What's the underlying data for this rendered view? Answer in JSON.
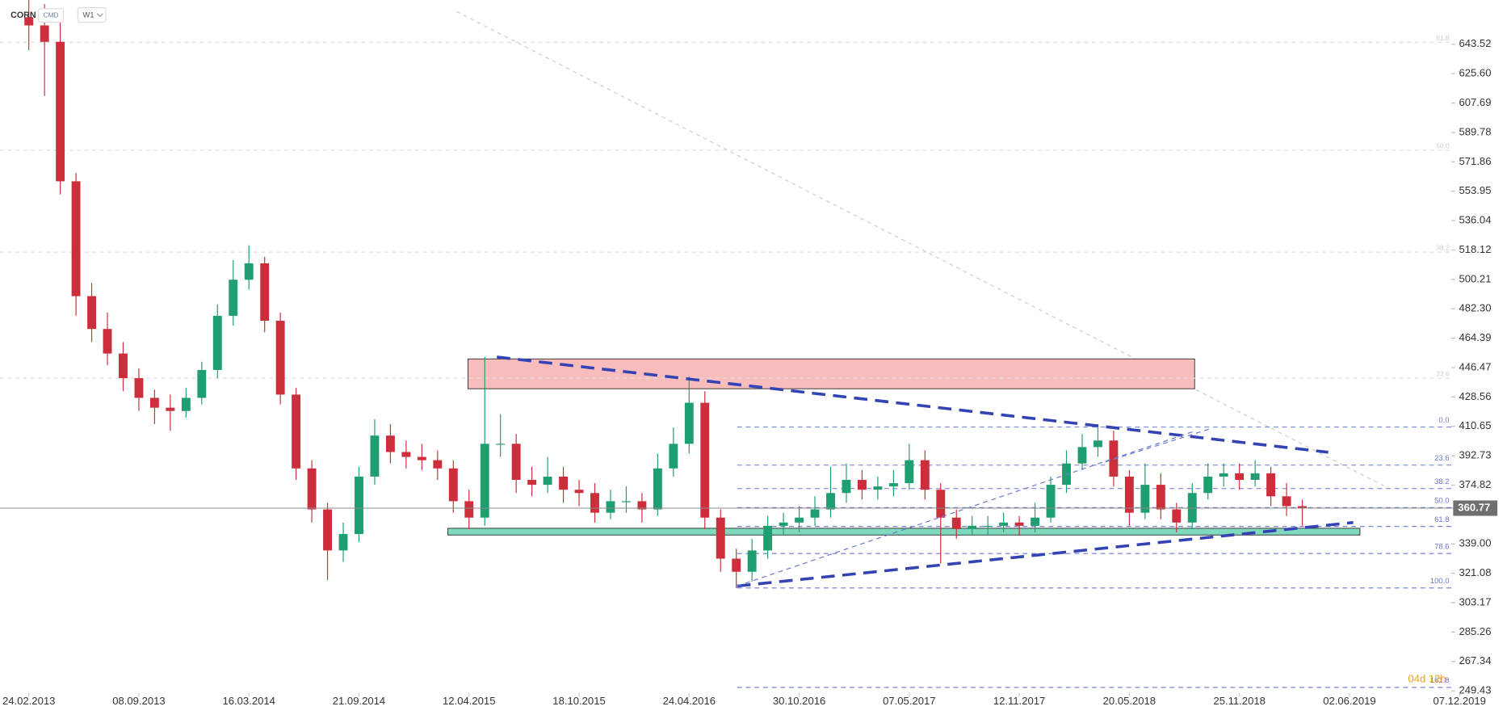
{
  "chart_data": {
    "type": "candlestick",
    "symbol": "CORN",
    "tags": [
      "CMD",
      "W1"
    ],
    "countdown": "04d 12h",
    "up_color": "#1f9f6f",
    "down_color": "#cc2f3b",
    "x": [
      0,
      4,
      8,
      12,
      16,
      20,
      24,
      28,
      32,
      36,
      40,
      44,
      48,
      52,
      56,
      60,
      64,
      68,
      72,
      76,
      80,
      84,
      88,
      92,
      96,
      100,
      104,
      108,
      112,
      116,
      120,
      124,
      128,
      132,
      136,
      140,
      144,
      148,
      152,
      156,
      160,
      164,
      168,
      172,
      176,
      180,
      184,
      188,
      192,
      196,
      200,
      204,
      208,
      212,
      216,
      220,
      224,
      228,
      232,
      236,
      240,
      244,
      248,
      252,
      256,
      260,
      264,
      268,
      272,
      276,
      280,
      284,
      288,
      292,
      296,
      300,
      304,
      308,
      312,
      316,
      320,
      324
    ],
    "open": [
      660,
      655,
      645,
      560,
      490,
      470,
      455,
      440,
      428,
      422,
      420,
      428,
      445,
      478,
      500,
      510,
      475,
      430,
      385,
      360,
      335,
      345,
      380,
      405,
      395,
      392,
      390,
      385,
      365,
      355,
      400,
      400,
      378,
      375,
      380,
      372,
      370,
      358,
      365,
      365,
      360,
      385,
      400,
      425,
      355,
      330,
      322,
      335,
      350,
      352,
      355,
      360,
      370,
      378,
      372,
      374,
      376,
      390,
      372,
      355,
      348,
      350,
      350,
      352,
      350,
      355,
      375,
      388,
      398,
      402,
      380,
      358,
      375,
      360,
      352,
      370,
      380,
      382,
      378,
      382,
      368,
      362
    ],
    "high": [
      675,
      668,
      662,
      565,
      498,
      480,
      462,
      446,
      433,
      430,
      434,
      450,
      485,
      512,
      521,
      514,
      480,
      434,
      390,
      364,
      352,
      386,
      415,
      412,
      402,
      400,
      396,
      390,
      372,
      453,
      418,
      406,
      386,
      392,
      386,
      378,
      376,
      372,
      374,
      370,
      394,
      410,
      441,
      432,
      360,
      336,
      342,
      356,
      358,
      362,
      368,
      386,
      388,
      384,
      380,
      384,
      400,
      396,
      376,
      360,
      356,
      356,
      358,
      356,
      364,
      380,
      396,
      406,
      412,
      408,
      384,
      388,
      382,
      364,
      376,
      388,
      388,
      388,
      390,
      386,
      376,
      366
    ],
    "low": [
      640,
      612,
      552,
      478,
      462,
      448,
      432,
      420,
      412,
      408,
      416,
      424,
      440,
      472,
      494,
      468,
      424,
      378,
      352,
      317,
      328,
      340,
      375,
      388,
      385,
      384,
      378,
      358,
      348,
      350,
      392,
      370,
      368,
      370,
      364,
      362,
      352,
      354,
      358,
      352,
      356,
      380,
      394,
      348,
      322,
      312,
      316,
      330,
      344,
      346,
      350,
      355,
      364,
      366,
      366,
      368,
      372,
      366,
      327,
      342,
      344,
      344,
      346,
      344,
      346,
      352,
      370,
      384,
      392,
      374,
      350,
      354,
      354,
      346,
      348,
      366,
      374,
      372,
      374,
      362,
      356,
      350
    ],
    "close": [
      655,
      645,
      560,
      490,
      470,
      455,
      440,
      428,
      422,
      420,
      428,
      445,
      478,
      500,
      510,
      475,
      430,
      385,
      360,
      335,
      345,
      380,
      405,
      395,
      392,
      390,
      385,
      365,
      355,
      400,
      400,
      378,
      375,
      380,
      372,
      370,
      358,
      365,
      365,
      360,
      385,
      400,
      425,
      355,
      330,
      322,
      335,
      350,
      352,
      355,
      360,
      370,
      378,
      372,
      374,
      376,
      390,
      372,
      355,
      348,
      350,
      350,
      352,
      350,
      355,
      375,
      388,
      398,
      402,
      380,
      358,
      375,
      360,
      352,
      370,
      380,
      382,
      378,
      382,
      368,
      362,
      360.77
    ],
    "xlim": [
      -7.33,
      361.9
    ],
    "xticks": [
      {
        "value": 0,
        "label": "24.02.2013"
      },
      {
        "value": 28,
        "label": "08.09.2013"
      },
      {
        "value": 56,
        "label": "16.03.2014"
      },
      {
        "value": 84,
        "label": "21.09.2014"
      },
      {
        "value": 112,
        "label": "12.04.2015"
      },
      {
        "value": 140,
        "label": "18.10.2015"
      },
      {
        "value": 168,
        "label": "24.04.2016"
      },
      {
        "value": 196,
        "label": "30.10.2016"
      },
      {
        "value": 224,
        "label": "07.05.2017"
      },
      {
        "value": 252,
        "label": "12.11.2017"
      },
      {
        "value": 280,
        "label": "20.05.2018"
      },
      {
        "value": 308,
        "label": "25.11.2018"
      },
      {
        "value": 336,
        "label": "02.06.2019"
      },
      {
        "value": 364,
        "label": "07.12.2019"
      }
    ],
    "ylim": [
      235.3,
      670.5
    ],
    "yticks": [
      643.52,
      {
        "value": 625.6,
        "label": "625.60"
      },
      607.69,
      589.78,
      571.86,
      553.95,
      536.04,
      518.12,
      500.21,
      {
        "value": 482.3,
        "label": "482.30"
      },
      464.39,
      446.47,
      428.56,
      410.65,
      392.73,
      374.82,
      {
        "value": 339,
        "label": "339.00"
      },
      321.08,
      303.17,
      285.26,
      267.34,
      249.43
    ],
    "fib_levels": [
      {
        "label": "0.0",
        "price": 410.2
      },
      {
        "label": "23.6",
        "price": 387.0
      },
      {
        "label": "38.2",
        "price": 372.7
      },
      {
        "label": "50.0",
        "price": 361.15
      },
      {
        "label": "61.8",
        "price": 349.6
      },
      {
        "label": "78.6",
        "price": 333.1
      },
      {
        "label": "100.0",
        "price": 312.1
      },
      {
        "label": "161.8",
        "price": 251.5
      }
    ],
    "fib_levels_major": [
      {
        "label": "61.8",
        "price": 644.7
      },
      {
        "label": "50.0",
        "price": 579
      },
      {
        "label": "38.2",
        "price": 516.8
      },
      {
        "label": "23.6",
        "price": 440
      }
    ]
  }
}
